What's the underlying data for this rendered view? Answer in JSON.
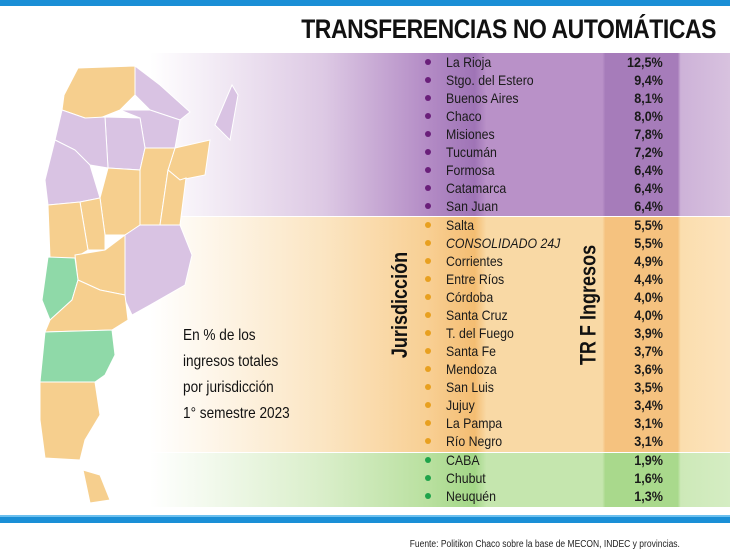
{
  "title": "TRANSFERENCIAS NO AUTOMÁTICAS",
  "note": [
    "En % de los",
    "ingresos totales",
    "por jurisdicción",
    "1° semestre 2023"
  ],
  "source": "Fuente: Politikon Chaco sobre la base de MECON, INDEC y provincias.",
  "colors": {
    "purple": "#b38bc5",
    "orange": "#f4bd72",
    "green": "#a3d787",
    "dot_purple": "#6a1f7a",
    "dot_orange": "#e8a020",
    "dot_green": "#1fa34a",
    "map_purple": "#d9c3e3",
    "map_orange": "#f6cf8e",
    "map_green": "#8fd9a8",
    "blue": "#1a8fd6"
  },
  "chart_data": {
    "type": "table",
    "title": "TRANSFERENCIAS NO AUTOMÁTICAS",
    "columns": [
      "Jurisdicción",
      "TR F Ingresos"
    ],
    "unit": "%",
    "rows": [
      {
        "name": "La Rioja",
        "value": "12,5%",
        "group": "purple"
      },
      {
        "name": "Stgo. del Estero",
        "value": "9,4%",
        "group": "purple"
      },
      {
        "name": "Buenos Aires",
        "value": "8,1%",
        "group": "purple"
      },
      {
        "name": "Chaco",
        "value": "8,0%",
        "group": "purple"
      },
      {
        "name": "Misiones",
        "value": "7,8%",
        "group": "purple"
      },
      {
        "name": "Tucumán",
        "value": "7,2%",
        "group": "purple"
      },
      {
        "name": "Formosa",
        "value": "6,4%",
        "group": "purple"
      },
      {
        "name": "Catamarca",
        "value": "6,4%",
        "group": "purple"
      },
      {
        "name": "San Juan",
        "value": "6,4%",
        "group": "purple"
      },
      {
        "name": "Salta",
        "value": "5,5%",
        "group": "orange"
      },
      {
        "name": "CONSOLIDADO 24J",
        "value": "5,5%",
        "group": "orange",
        "italic": true
      },
      {
        "name": "Corrientes",
        "value": "4,9%",
        "group": "orange"
      },
      {
        "name": "Entre Ríos",
        "value": "4,4%",
        "group": "orange"
      },
      {
        "name": "Córdoba",
        "value": "4,0%",
        "group": "orange"
      },
      {
        "name": "Santa Cruz",
        "value": "4,0%",
        "group": "orange"
      },
      {
        "name": "T. del Fuego",
        "value": "3,9%",
        "group": "orange"
      },
      {
        "name": "Santa Fe",
        "value": "3,7%",
        "group": "orange"
      },
      {
        "name": "Mendoza",
        "value": "3,6%",
        "group": "orange"
      },
      {
        "name": "San Luis",
        "value": "3,5%",
        "group": "orange"
      },
      {
        "name": "Jujuy",
        "value": "3,4%",
        "group": "orange"
      },
      {
        "name": "La Pampa",
        "value": "3,1%",
        "group": "orange"
      },
      {
        "name": "Río Negro",
        "value": "3,1%",
        "group": "orange"
      },
      {
        "name": "CABA",
        "value": "1,9%",
        "group": "green"
      },
      {
        "name": "Chubut",
        "value": "1,6%",
        "group": "green"
      },
      {
        "name": "Neuquén",
        "value": "1,3%",
        "group": "green"
      }
    ]
  }
}
